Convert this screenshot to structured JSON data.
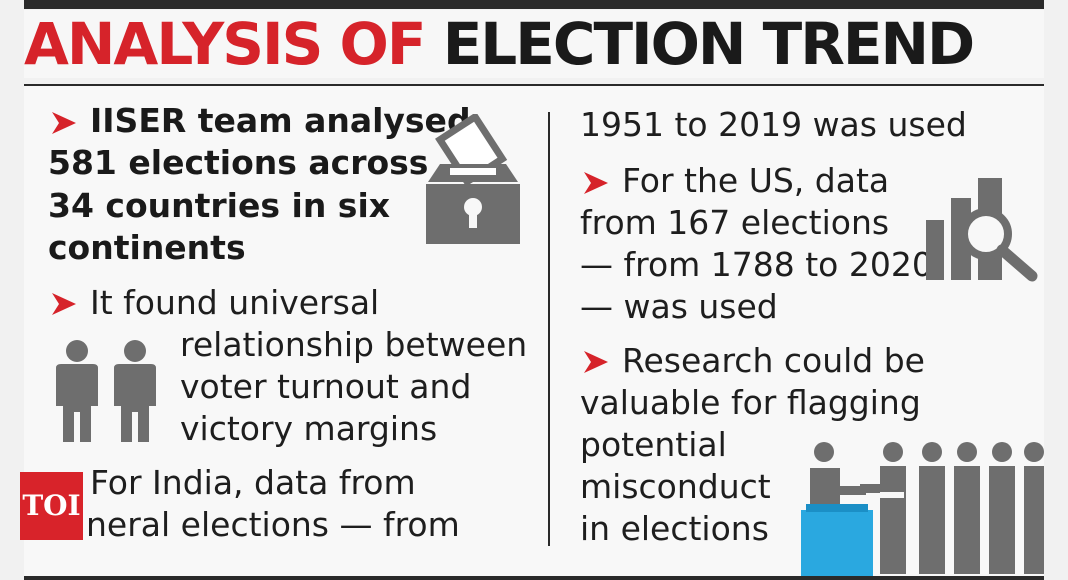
{
  "header": {
    "title_part1": "ANALYSIS OF",
    "title_part2": "ELECTION TREND"
  },
  "left_column": {
    "point1_lines": [
      "IISER team analysed",
      "581 elections across",
      "34 countries in six",
      "continents"
    ],
    "point2_lines": [
      "It found universal",
      "relationship between",
      "voter turnout and",
      "victory margins"
    ],
    "point3_lines": [
      "For India, data from",
      "neral elections — from"
    ]
  },
  "right_column": {
    "point3_continued": "1951 to 2019 was used",
    "point4_lines": [
      "For the US, data",
      "from 167 elections",
      "— from 1788 to 2020",
      "— was used"
    ],
    "point5_lines": [
      "Research could be",
      "valuable for flagging",
      "potential",
      "misconduct",
      "in elections"
    ]
  },
  "badge": {
    "label": "TOI"
  },
  "icons": [
    "ballot-box-icon",
    "people-pair-icon",
    "bar-chart-magnifier-icon",
    "voters-queue-icon"
  ],
  "colors": {
    "accent_red": "#d6232a",
    "text_dark": "#1e1e1e",
    "icon_gray": "#6e6e6e",
    "ballot_blue": "#2aa8e0"
  }
}
